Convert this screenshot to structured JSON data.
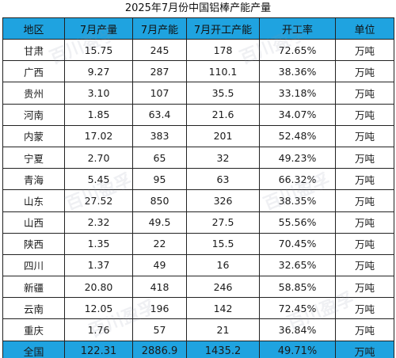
{
  "title": "2025年7月份中国铝棒产能产量",
  "headers": [
    "地区",
    "7月产量",
    "7月产能",
    "7月开工产能",
    "开工率",
    "单位"
  ],
  "rows": [
    [
      "甘肃",
      "15.75",
      "245",
      "178",
      "72.65%",
      "万吨"
    ],
    [
      "广西",
      "9.27",
      "287",
      "110.1",
      "38.36%",
      "万吨"
    ],
    [
      "贵州",
      "3.10",
      "107",
      "35.5",
      "33.18%",
      "万吨"
    ],
    [
      "河南",
      "1.85",
      "63.4",
      "21.6",
      "34.07%",
      "万吨"
    ],
    [
      "内蒙",
      "17.02",
      "383",
      "201",
      "52.48%",
      "万吨"
    ],
    [
      "宁夏",
      "2.70",
      "65",
      "32",
      "49.23%",
      "万吨"
    ],
    [
      "青海",
      "5.45",
      "95",
      "63",
      "66.32%",
      "万吨"
    ],
    [
      "山东",
      "27.52",
      "850",
      "326",
      "38.35%",
      "万吨"
    ],
    [
      "山西",
      "2.32",
      "49.5",
      "27.5",
      "55.56%",
      "万吨"
    ],
    [
      "陕西",
      "1.35",
      "22",
      "15.5",
      "70.45%",
      "万吨"
    ],
    [
      "四川",
      "1.37",
      "49",
      "16",
      "32.65%",
      "万吨"
    ],
    [
      "新疆",
      "20.80",
      "418",
      "246",
      "58.85%",
      "万吨"
    ],
    [
      "云南",
      "12.05",
      "196",
      "142",
      "72.45%",
      "万吨"
    ],
    [
      "重庆",
      "1.76",
      "57",
      "21",
      "36.84%",
      "万吨"
    ]
  ],
  "total": [
    "全国",
    "122.31",
    "2886.9",
    "1435.2",
    "49.71%",
    "万吨"
  ],
  "watermark": "百川盈孚",
  "colors": {
    "header_bg": "#1fa3e0",
    "border": "#222222",
    "body_bg": "#ffffff"
  }
}
